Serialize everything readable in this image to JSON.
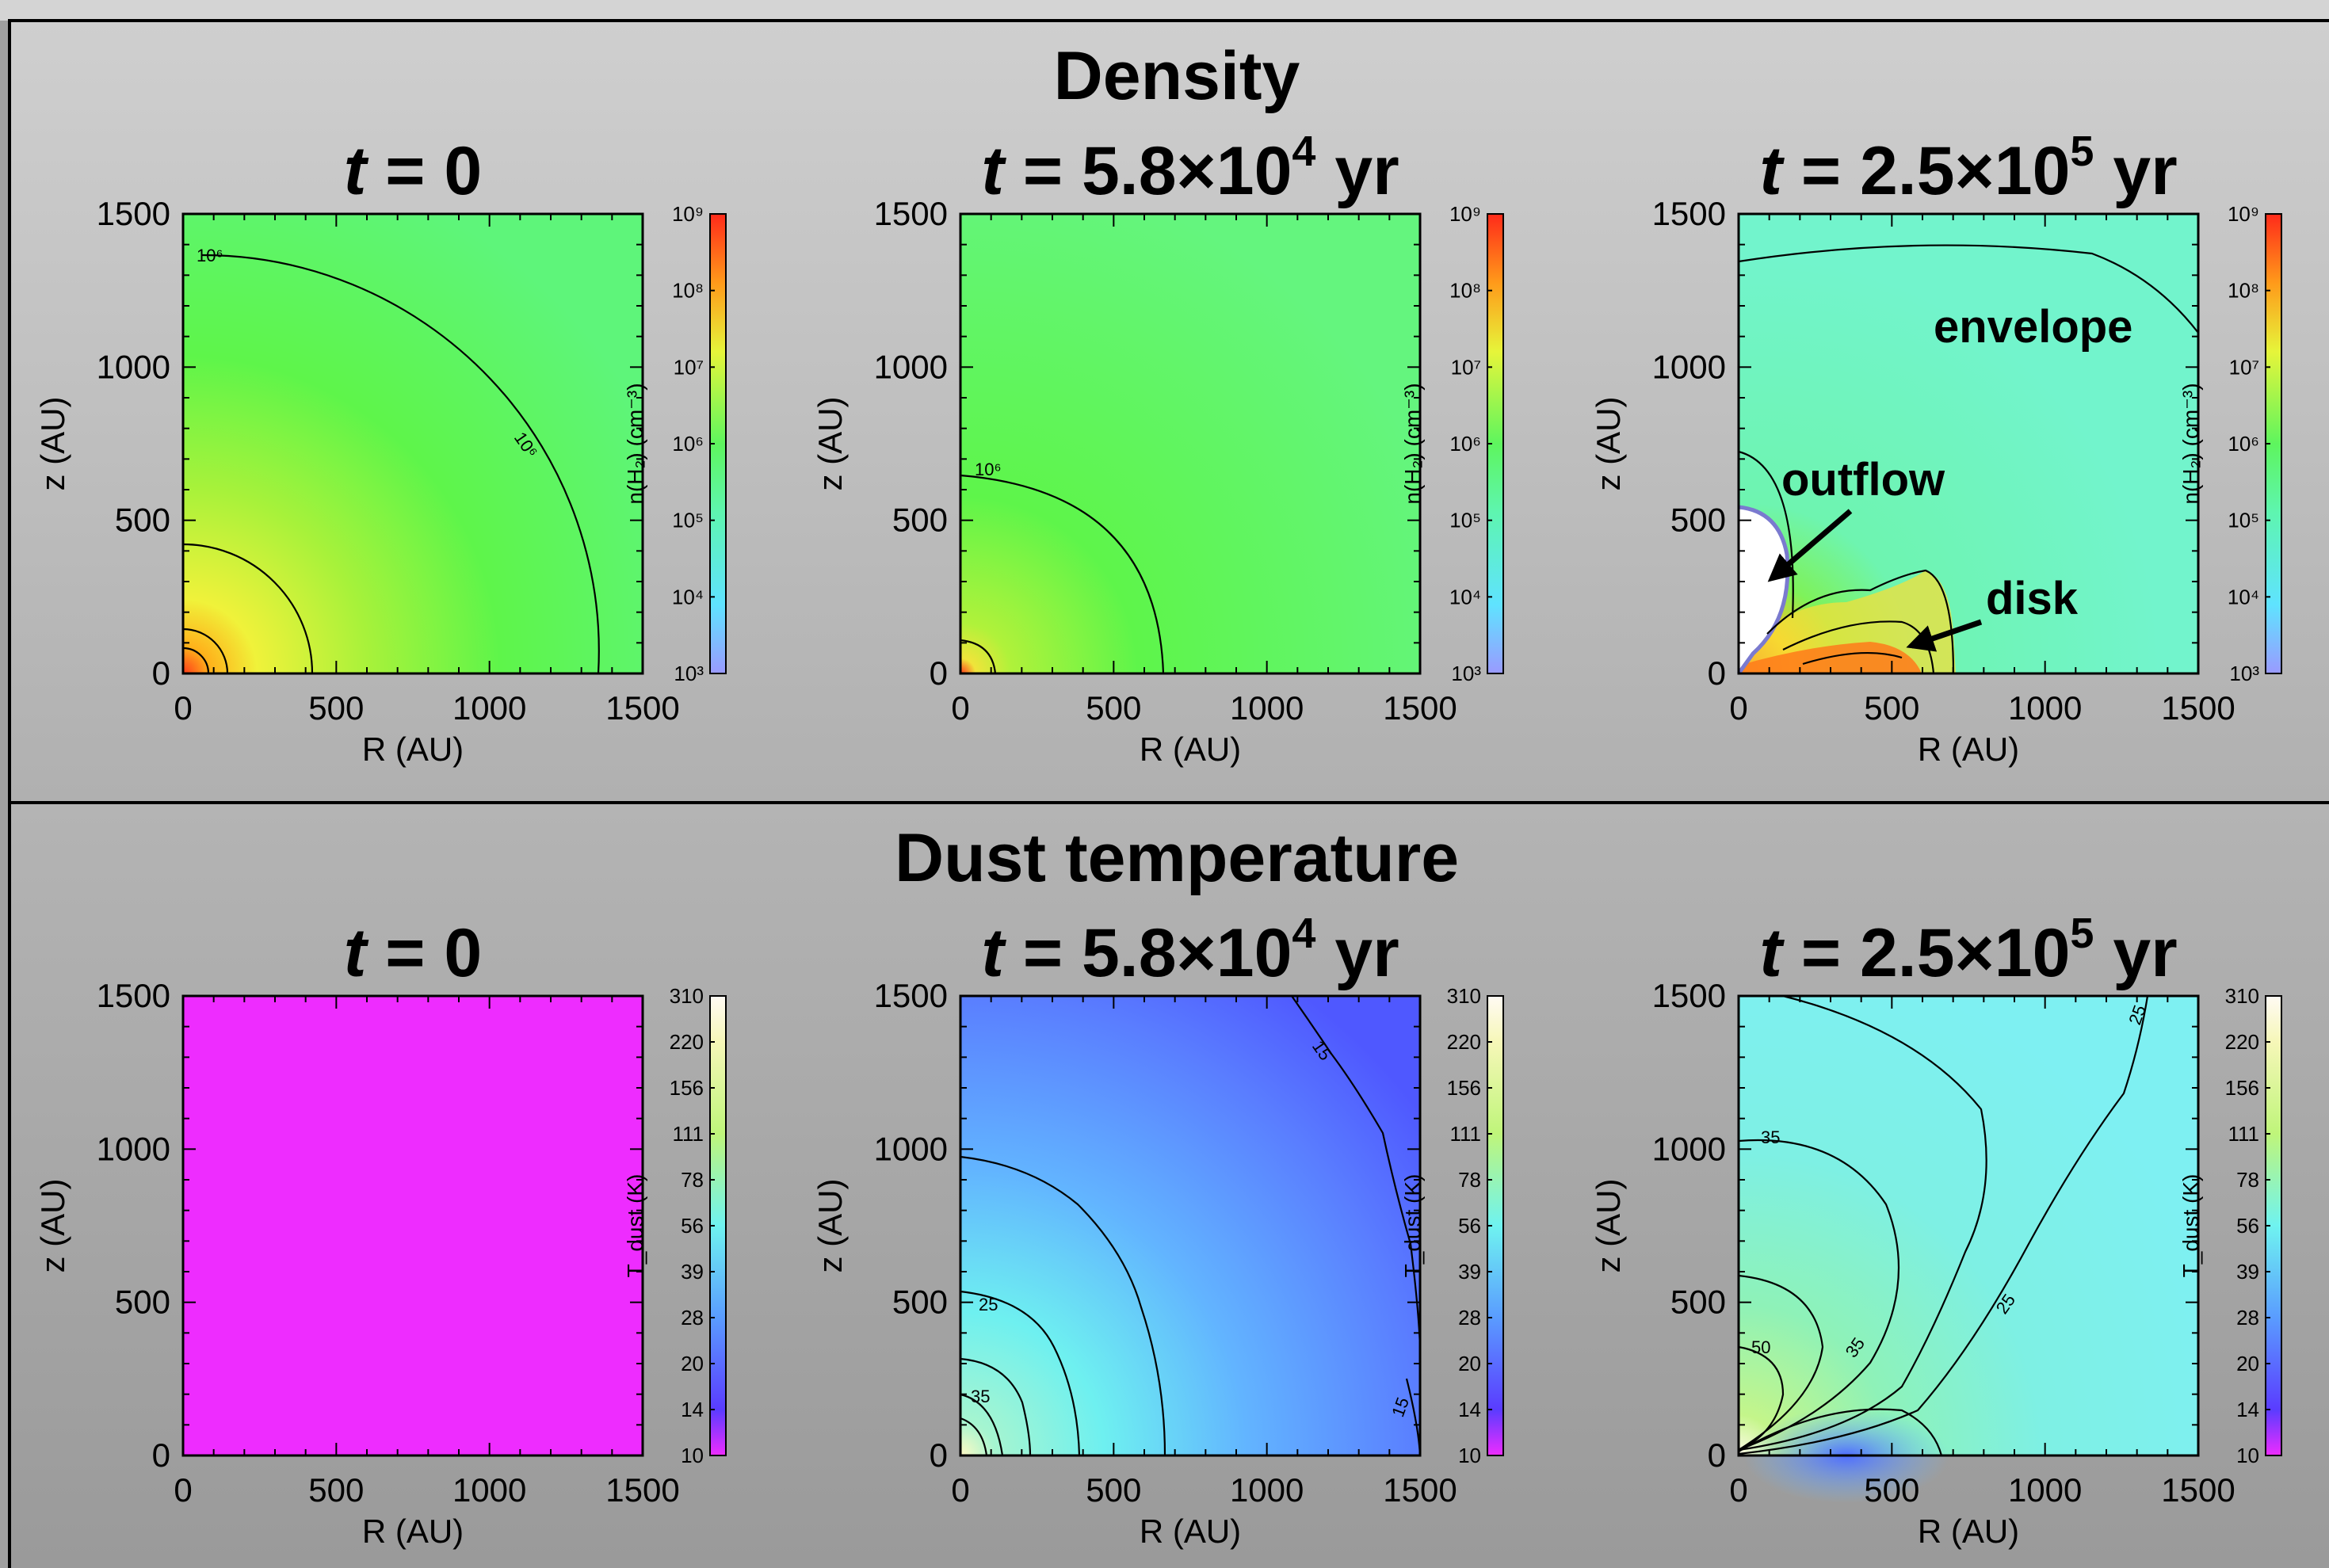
{
  "sections": [
    {
      "heading": "Density",
      "panels": [
        {
          "t": "t",
          "eq": " = 0",
          "mant": "",
          "exp": "",
          "unit": ""
        },
        {
          "t": "t",
          "eq": " = 5.8×10",
          "mant": "",
          "exp": "4",
          "unit": " yr"
        },
        {
          "t": "t",
          "eq": " = 2.5×10",
          "mant": "",
          "exp": "5",
          "unit": " yr"
        }
      ],
      "colorbar": {
        "label": "n(H₂) (cm⁻³)",
        "ticks": [
          "10⁹",
          "10⁸",
          "10⁷",
          "10⁶",
          "10⁵",
          "10⁴",
          "10³"
        ]
      }
    },
    {
      "heading": "Dust temperature",
      "panels": [
        {
          "t": "t",
          "eq": " = 0",
          "mant": "",
          "exp": "",
          "unit": ""
        },
        {
          "t": "t",
          "eq": " = 5.8×10",
          "mant": "",
          "exp": "4",
          "unit": " yr"
        },
        {
          "t": "t",
          "eq": " = 2.5×10",
          "mant": "",
          "exp": "5",
          "unit": " yr"
        }
      ],
      "colorbar": {
        "label": "T_dust (K)",
        "ticks": [
          "310",
          "220",
          "156",
          "111",
          "78",
          "56",
          "39",
          "28",
          "20",
          "14",
          "10"
        ]
      }
    }
  ],
  "axes": {
    "xlabel": "R (AU)",
    "ylabel": "z (AU)",
    "xticks": [
      "0",
      "500",
      "1000",
      "1500"
    ],
    "yticks": [
      "1500",
      "1000",
      "500",
      "0"
    ]
  },
  "annotations": {
    "envelope": "envelope",
    "outflow": "outflow",
    "disk": "disk"
  },
  "contour_labels": {
    "d1a": "10⁶",
    "d1b": "10⁶",
    "d2": "10⁶",
    "t2a": "15",
    "t2b": "25",
    "t2c": "35",
    "t2d": "15",
    "t3a": "25",
    "t3b": "35",
    "t3c": "35",
    "t3d": "25",
    "t3e": "50"
  },
  "colors": {
    "density_bg": "#5ef56a",
    "density_late_bg": "#6cf4c6",
    "temp_t0": "#ee2cff",
    "temp_mid": "#5a7dff",
    "temp_late": "#7ef0ee"
  },
  "chart_data": [
    {
      "type": "heatmap",
      "title": "t = 0",
      "quantity": "n(H2) (cm^-3)",
      "xlabel": "R (AU)",
      "ylabel": "z (AU)",
      "xlim": [
        0,
        1500
      ],
      "ylim": [
        0,
        1500
      ],
      "colorscale": "log",
      "clim": [
        1000,
        1000000000
      ],
      "contour_levels": [
        1000000
      ]
    },
    {
      "type": "heatmap",
      "title": "t = 5.8×10^4 yr",
      "quantity": "n(H2) (cm^-3)",
      "xlabel": "R (AU)",
      "ylabel": "z (AU)",
      "xlim": [
        0,
        1500
      ],
      "ylim": [
        0,
        1500
      ],
      "colorscale": "log",
      "clim": [
        1000,
        1000000000
      ],
      "contour_levels": [
        1000000
      ]
    },
    {
      "type": "heatmap",
      "title": "t = 2.5×10^5 yr",
      "quantity": "n(H2) (cm^-3)",
      "xlabel": "R (AU)",
      "ylabel": "z (AU)",
      "xlim": [
        0,
        1500
      ],
      "ylim": [
        0,
        1500
      ],
      "colorscale": "log",
      "clim": [
        1000,
        1000000000
      ],
      "annotations": [
        "envelope",
        "outflow",
        "disk"
      ]
    },
    {
      "type": "heatmap",
      "title": "t = 0",
      "quantity": "T_dust (K)",
      "xlabel": "R (AU)",
      "ylabel": "z (AU)",
      "xlim": [
        0,
        1500
      ],
      "ylim": [
        0,
        1500
      ],
      "clim": [
        10,
        310
      ],
      "uniform_value": 10
    },
    {
      "type": "heatmap",
      "title": "t = 5.8×10^4 yr",
      "quantity": "T_dust (K)",
      "xlabel": "R (AU)",
      "ylabel": "z (AU)",
      "xlim": [
        0,
        1500
      ],
      "ylim": [
        0,
        1500
      ],
      "clim": [
        10,
        310
      ],
      "contour_levels": [
        15,
        25,
        35
      ]
    },
    {
      "type": "heatmap",
      "title": "t = 2.5×10^5 yr",
      "quantity": "T_dust (K)",
      "xlabel": "R (AU)",
      "ylabel": "z (AU)",
      "xlim": [
        0,
        1500
      ],
      "ylim": [
        0,
        1500
      ],
      "clim": [
        10,
        310
      ],
      "contour_levels": [
        25,
        35,
        50
      ]
    }
  ]
}
